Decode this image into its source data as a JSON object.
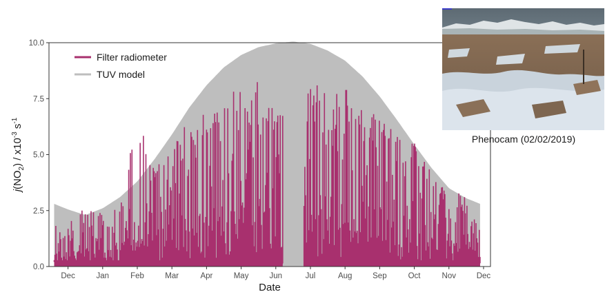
{
  "chart_data": {
    "type": "area",
    "xlabel": "Date",
    "ylabel_parts": {
      "italic": "j",
      "nox": "(NO",
      "sub": "2",
      "close": ") / x10",
      "sup": "-3",
      "unit": " s",
      "supunit": "-1"
    },
    "ylim": [
      0,
      10
    ],
    "yticks": [
      "0.0",
      "2.5",
      "5.0",
      "7.5",
      "10.0"
    ],
    "x_domain_months": [
      -0.55,
      12.2
    ],
    "xticks": [
      {
        "label": "Dec",
        "month": 0
      },
      {
        "label": "Jan",
        "month": 1
      },
      {
        "label": "Feb",
        "month": 2
      },
      {
        "label": "Mar",
        "month": 3
      },
      {
        "label": "Apr",
        "month": 4
      },
      {
        "label": "May",
        "month": 5
      },
      {
        "label": "Jun",
        "month": 6
      },
      {
        "label": "Jul",
        "month": 7
      },
      {
        "label": "Aug",
        "month": 8
      },
      {
        "label": "Sep",
        "month": 9
      },
      {
        "label": "Oct",
        "month": 10
      },
      {
        "label": "Nov",
        "month": 11
      },
      {
        "label": "Dec",
        "month": 12
      }
    ],
    "grid": false,
    "legend_position": "top-left",
    "series": [
      {
        "name": "Filter radiometer",
        "color": "#a8306e",
        "x_start_month": -0.4,
        "x_end_month": 11.9,
        "gap_months": [
          6.2,
          6.8
        ],
        "monthly_peak": [
          {
            "month": -0.4,
            "value": 1.8
          },
          {
            "month": 0.0,
            "value": 2.2
          },
          {
            "month": 0.5,
            "value": 2.6
          },
          {
            "month": 1.0,
            "value": 2.6
          },
          {
            "month": 1.5,
            "value": 3.0
          },
          {
            "month": 2.0,
            "value": 6.7
          },
          {
            "month": 2.5,
            "value": 4.8
          },
          {
            "month": 3.0,
            "value": 5.4
          },
          {
            "month": 3.5,
            "value": 6.6
          },
          {
            "month": 4.0,
            "value": 7.0
          },
          {
            "month": 4.5,
            "value": 7.4
          },
          {
            "month": 5.0,
            "value": 8.3
          },
          {
            "month": 5.5,
            "value": 8.4
          },
          {
            "month": 6.0,
            "value": 7.0
          },
          {
            "month": 6.8,
            "value": 8.3
          },
          {
            "month": 7.0,
            "value": 8.2
          },
          {
            "month": 7.5,
            "value": 8.3
          },
          {
            "month": 8.0,
            "value": 8.0
          },
          {
            "month": 8.5,
            "value": 7.5
          },
          {
            "month": 9.0,
            "value": 7.1
          },
          {
            "month": 9.5,
            "value": 6.2
          },
          {
            "month": 10.0,
            "value": 5.6
          },
          {
            "month": 10.5,
            "value": 4.2
          },
          {
            "month": 11.0,
            "value": 3.2
          },
          {
            "month": 11.5,
            "value": 3.4
          },
          {
            "month": 11.9,
            "value": 1.8
          }
        ]
      },
      {
        "name": "TUV model",
        "color": "#bebebe",
        "x_start_month": -0.4,
        "x_end_month": 11.9,
        "envelope": [
          {
            "month": -0.4,
            "value": 2.8
          },
          {
            "month": 0.0,
            "value": 2.55
          },
          {
            "month": 0.5,
            "value": 2.3
          },
          {
            "month": 1.0,
            "value": 2.6
          },
          {
            "month": 1.5,
            "value": 3.1
          },
          {
            "month": 2.0,
            "value": 3.8
          },
          {
            "month": 2.5,
            "value": 4.8
          },
          {
            "month": 3.0,
            "value": 5.9
          },
          {
            "month": 3.5,
            "value": 7.1
          },
          {
            "month": 4.0,
            "value": 8.1
          },
          {
            "month": 4.5,
            "value": 8.9
          },
          {
            "month": 5.0,
            "value": 9.45
          },
          {
            "month": 5.5,
            "value": 9.8
          },
          {
            "month": 6.0,
            "value": 9.97
          },
          {
            "month": 6.5,
            "value": 10.05
          },
          {
            "month": 7.0,
            "value": 9.95
          },
          {
            "month": 7.5,
            "value": 9.65
          },
          {
            "month": 8.0,
            "value": 9.2
          },
          {
            "month": 8.5,
            "value": 8.5
          },
          {
            "month": 9.0,
            "value": 7.6
          },
          {
            "month": 9.5,
            "value": 6.55
          },
          {
            "month": 10.0,
            "value": 5.45
          },
          {
            "month": 10.5,
            "value": 4.4
          },
          {
            "month": 11.0,
            "value": 3.5
          },
          {
            "month": 11.5,
            "value": 3.05
          },
          {
            "month": 11.9,
            "value": 2.8
          }
        ]
      }
    ]
  },
  "phenocam": {
    "caption": "Phenocam (02/02/2019)"
  }
}
